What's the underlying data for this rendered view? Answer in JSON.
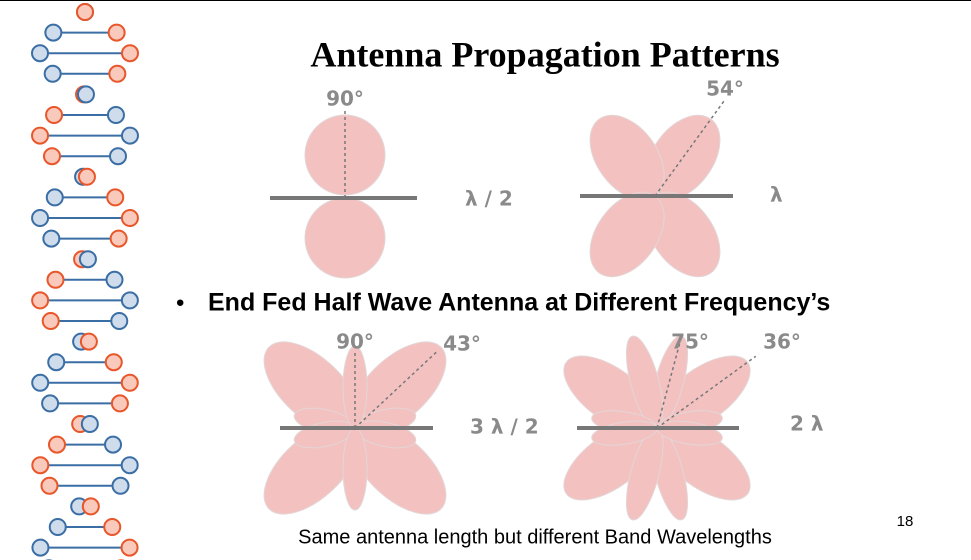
{
  "title": "Antenna Propagation Patterns",
  "patterns": [
    {
      "angle_labels": [
        "90°"
      ],
      "wavelength": "λ / 2"
    },
    {
      "angle_labels": [
        "54°"
      ],
      "wavelength": "λ"
    },
    {
      "angle_labels": [
        "90°",
        "43°"
      ],
      "wavelength": "3 λ / 2"
    },
    {
      "angle_labels": [
        "75°",
        "36°"
      ],
      "wavelength": "2 λ"
    }
  ],
  "bullet": "End Fed Half Wave Antenna at Different Frequency’s",
  "caption": "Same antenna length but different Band Wavelengths",
  "page_number": "18"
}
